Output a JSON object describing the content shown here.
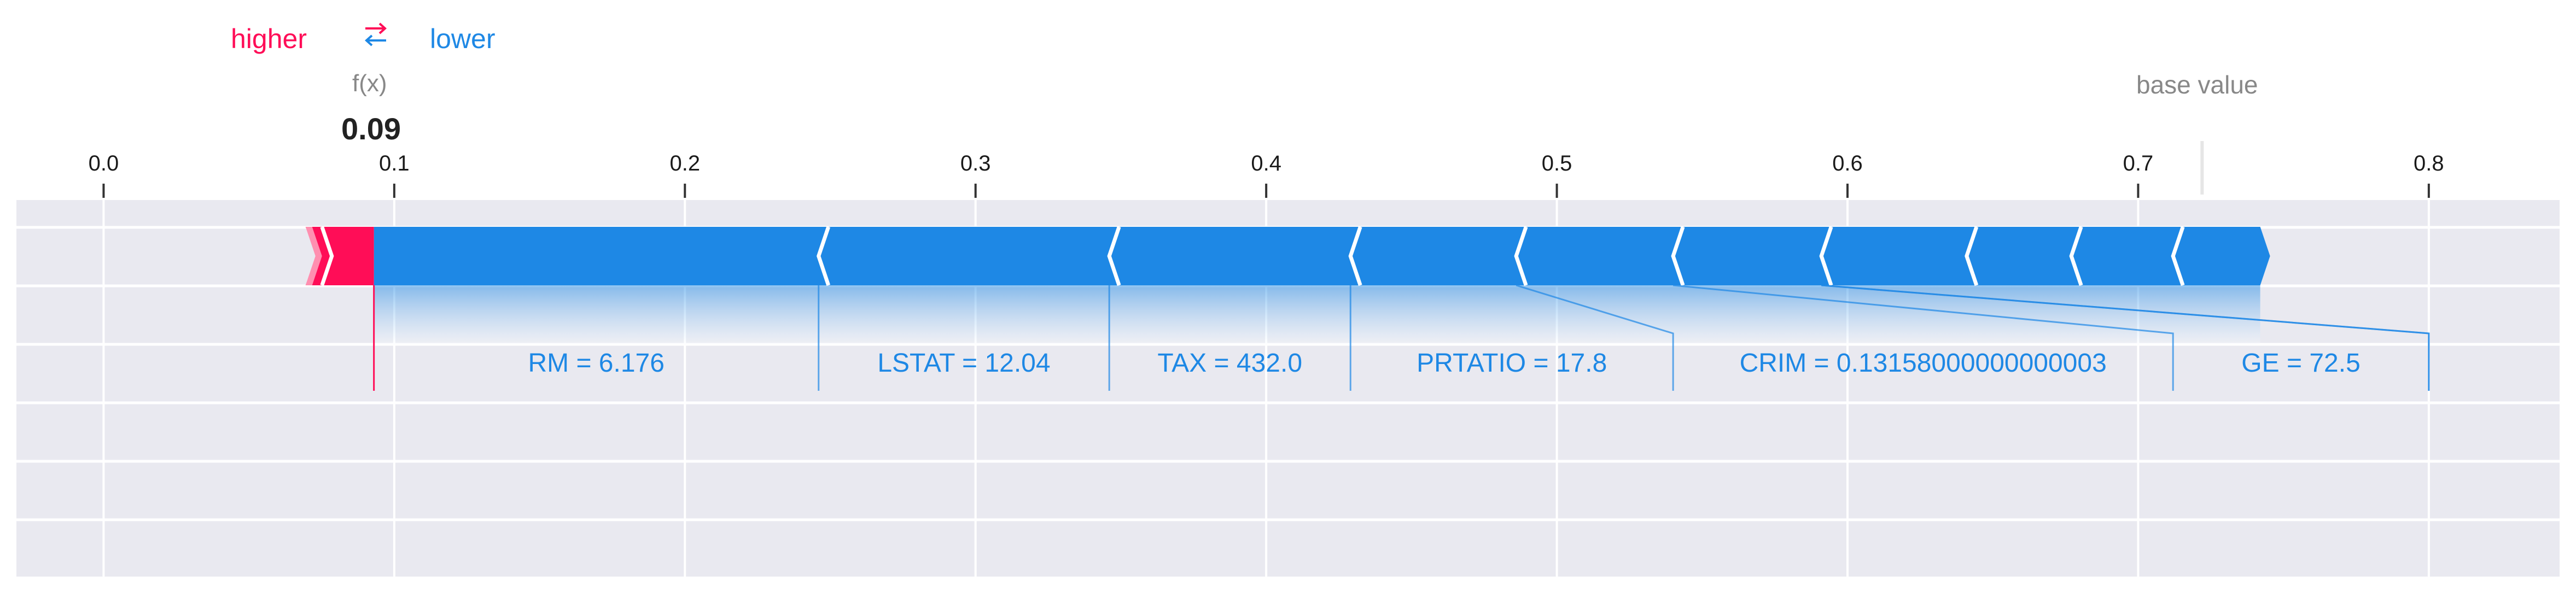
{
  "legend": {
    "higher_label": "higher",
    "arrow_glyph": "⇄",
    "lower_label": "lower"
  },
  "output": {
    "label": "f(x)",
    "value_text": "0.09"
  },
  "base": {
    "label": "base value"
  },
  "colors": {
    "higher": "#ff0d57",
    "lower": "#1e88e5",
    "band_bg": "#e9e9f0",
    "grid": "#ffffff"
  },
  "chart_data": {
    "type": "force_plot",
    "xlim": [
      -0.03,
      0.845
    ],
    "ticks": [
      0.0,
      0.1,
      0.2,
      0.3,
      0.4,
      0.5,
      0.6,
      0.7,
      0.8
    ],
    "tick_labels": [
      "0.0",
      "0.1",
      "0.2",
      "0.3",
      "0.4",
      "0.5",
      "0.6",
      "0.7",
      "0.8"
    ],
    "output_value": 0.093,
    "base_value": 0.722,
    "higher_segments": [
      {
        "start": 0.071,
        "end": 0.093
      }
    ],
    "lower_segments": [
      {
        "start": 0.093,
        "end": 0.246,
        "label": "RM = 6.176"
      },
      {
        "start": 0.246,
        "end": 0.346,
        "label": "LSTAT = 12.04"
      },
      {
        "start": 0.346,
        "end": 0.429,
        "label": "TAX = 432.0"
      },
      {
        "start": 0.429,
        "end": 0.486,
        "label": "PRTATIO = 17.8"
      },
      {
        "start": 0.486,
        "end": 0.54,
        "label": "CRIM = 0.13158000000000003"
      },
      {
        "start": 0.54,
        "end": 0.591,
        "label": "GE = 72.5"
      },
      {
        "start": 0.591,
        "end": 0.641
      },
      {
        "start": 0.641,
        "end": 0.677
      },
      {
        "start": 0.677,
        "end": 0.712
      },
      {
        "start": 0.712,
        "end": 0.742
      }
    ],
    "label_anchors": [
      0.093,
      0.246,
      0.346,
      0.429,
      0.54,
      0.712,
      0.8
    ]
  }
}
